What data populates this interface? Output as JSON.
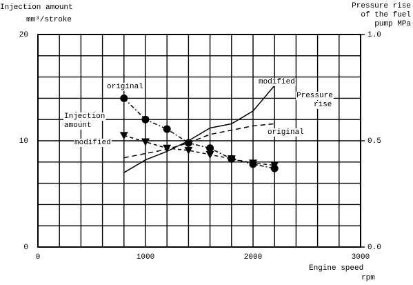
{
  "chart_data": {
    "type": "line",
    "ylabel": [
      "Injection amount",
      "mm³/stroke"
    ],
    "y2label": [
      "Pressure rise",
      "of the fuel",
      "pump  MPa"
    ],
    "xlabel": [
      "Engine speed",
      "rpm"
    ],
    "xlim": [
      0,
      3000
    ],
    "xticks": [
      0,
      1000,
      2000,
      3000
    ],
    "xminor": [
      200,
      400,
      600,
      800,
      1200,
      1400,
      1600,
      1800,
      2200,
      2400,
      2600,
      2800
    ],
    "ylim": [
      0,
      20
    ],
    "yticks": [
      0,
      10,
      20
    ],
    "yminor": [
      2,
      4,
      6,
      8,
      12,
      14,
      16,
      18
    ],
    "y2lim": [
      0,
      1
    ],
    "y2ticks": [
      {
        "value": 0,
        "label": "0.0"
      },
      0.5,
      {
        "value": 1,
        "label": "1.0"
      }
    ],
    "grid": true,
    "x": [
      800,
      1000,
      1200,
      1400,
      1600,
      1800,
      2000,
      2200
    ],
    "series": [
      {
        "color": "#000000",
        "marker": "circle",
        "dash": "6 3 2 3",
        "values": [
          14.0,
          12.0,
          11.1,
          9.8,
          9.3,
          8.3,
          7.8,
          7.4
        ]
      },
      {
        "color": "#000000",
        "marker": "triangle",
        "dash": "5 4",
        "values": [
          10.5,
          9.9,
          9.3,
          9.1,
          8.7,
          8.3,
          7.9,
          7.7
        ]
      },
      {
        "color": "#000000",
        "axis": "y2",
        "dash": "none",
        "values": [
          0.35,
          0.41,
          0.45,
          0.5,
          0.56,
          0.58,
          0.64,
          0.76
        ]
      },
      {
        "color": "#000000",
        "axis": "y2",
        "dash": "7 5",
        "values": [
          0.42,
          0.44,
          0.46,
          0.49,
          0.53,
          0.55,
          0.57,
          0.58
        ]
      }
    ],
    "annotations": [
      "original",
      "Injection",
      "amount",
      "modified",
      "modified",
      "Pressure",
      "rise",
      "original"
    ]
  }
}
